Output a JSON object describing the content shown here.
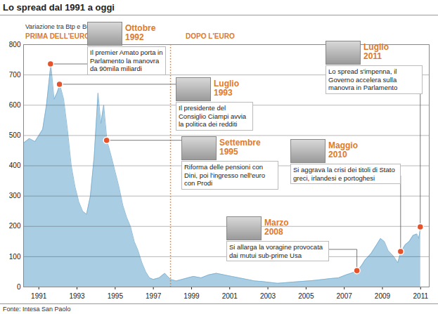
{
  "chart_data": {
    "type": "area",
    "title": "Lo spread dal 1991 a oggi",
    "subtitle": "Variazione tra Btp e Bund",
    "source": "Fonte: Intesa San Paolo",
    "color": "#a9cde2",
    "grid": true,
    "xlim": [
      1990.2,
      2011.45
    ],
    "xticks": [
      1991,
      1993,
      1995,
      1997,
      1999,
      2001,
      2003,
      2005,
      2007,
      2009,
      2011
    ],
    "ylim": [
      0,
      800
    ],
    "yticks": [
      0,
      100,
      200,
      300,
      400,
      500,
      600,
      700,
      800
    ],
    "x": [
      1990.2,
      1990.5,
      1990.8,
      1991.0,
      1991.2,
      1991.4,
      1991.63,
      1991.8,
      1991.95,
      1992.1,
      1992.3,
      1992.5,
      1992.7,
      1992.9,
      1993.1,
      1993.3,
      1993.5,
      1993.7,
      1993.9,
      1994.1,
      1994.25,
      1994.4,
      1994.57,
      1994.8,
      1995.0,
      1995.2,
      1995.4,
      1995.6,
      1995.8,
      1996.0,
      1996.2,
      1996.4,
      1996.6,
      1996.8,
      1997.0,
      1997.3,
      1997.6,
      1997.9,
      1998.2,
      1998.5,
      1998.8,
      1999.1,
      1999.5,
      1999.9,
      2000.3,
      2000.7,
      2001.1,
      2001.5,
      2001.9,
      2002.3,
      2002.7,
      2003.1,
      2003.5,
      2003.9,
      2004.3,
      2004.7,
      2005.1,
      2005.5,
      2005.9,
      2006.3,
      2006.7,
      2007.1,
      2007.35,
      2007.68,
      2007.9,
      2008.1,
      2008.4,
      2008.7,
      2008.9,
      2009.1,
      2009.3,
      2009.6,
      2009.8,
      2009.97,
      2010.2,
      2010.4,
      2010.6,
      2010.8,
      2010.9,
      2011.0
    ],
    "values": [
      475,
      490,
      480,
      500,
      520,
      600,
      735,
      620,
      640,
      668,
      620,
      520,
      400,
      330,
      280,
      250,
      240,
      300,
      430,
      640,
      540,
      600,
      483,
      430,
      380,
      330,
      270,
      230,
      200,
      150,
      120,
      80,
      50,
      30,
      25,
      30,
      45,
      25,
      20,
      25,
      30,
      35,
      30,
      40,
      45,
      40,
      35,
      30,
      25,
      20,
      18,
      15,
      12,
      14,
      16,
      18,
      20,
      22,
      25,
      28,
      30,
      40,
      45,
      53,
      70,
      90,
      110,
      140,
      160,
      150,
      120,
      100,
      80,
      116,
      140,
      150,
      170,
      175,
      160,
      197
    ],
    "divider": {
      "x": 1997.9,
      "before_label": "PRIMA DELL'EURO",
      "after_label": "DOPO L'EURO"
    },
    "annotations": [
      {
        "date": "Ottobre 1992",
        "text": "Il premier Amato porta in Parlamento la manovra da 90mila miliardi",
        "x": 1991.63,
        "y": 735
      },
      {
        "date": "Luglio 1993",
        "text": "Il presidente del Consiglio Ciampi avvia la politica dei redditi",
        "x": 1992.1,
        "y": 668
      },
      {
        "date": "Settembre 1995",
        "text": "Riforma delle pensioni con Dini, poi l'ingresso nell'euro con Prodi",
        "x": 1994.57,
        "y": 483
      },
      {
        "date": "Marzo 2008",
        "text": "Si allarga la voragine provocata dai mutui sub-prime Usa",
        "x": 2007.68,
        "y": 53
      },
      {
        "date": "Maggio 2010",
        "text": "Si aggrava la crisi dei titoli di Stato greci, irlandesi e portoghesi",
        "x": 2009.97,
        "y": 116
      },
      {
        "date": "Luglio 2011",
        "text": "Lo spread s'impenna, il Governo accelera sulla manovra in Parlamento",
        "x": 2011.0,
        "y": 197
      }
    ]
  }
}
